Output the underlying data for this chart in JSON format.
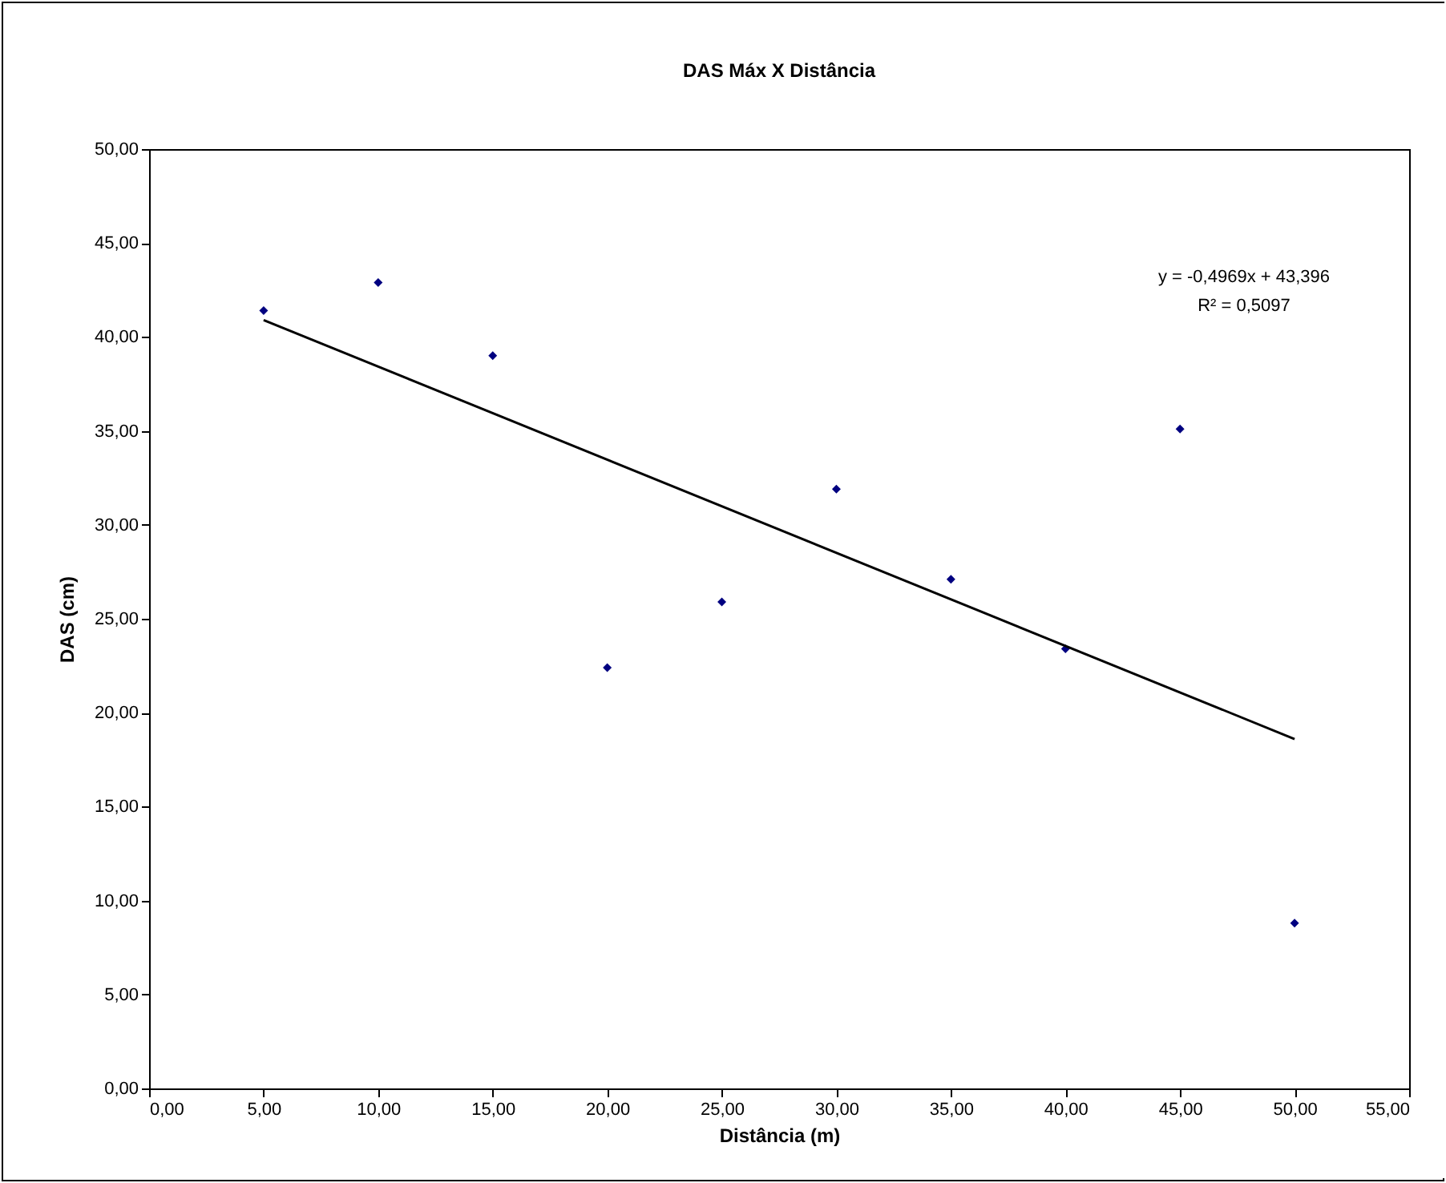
{
  "chart_data": {
    "type": "scatter",
    "title": "DAS Máx X Distância",
    "xlabel": "Distância (m)",
    "ylabel": "DAS (cm)",
    "xlim": [
      0,
      55
    ],
    "ylim": [
      0,
      50
    ],
    "xticks": [
      {
        "value": 0,
        "label": "0,00"
      },
      {
        "value": 5,
        "label": "5,00"
      },
      {
        "value": 10,
        "label": "10,00"
      },
      {
        "value": 15,
        "label": "15,00"
      },
      {
        "value": 20,
        "label": "20,00"
      },
      {
        "value": 25,
        "label": "25,00"
      },
      {
        "value": 30,
        "label": "30,00"
      },
      {
        "value": 35,
        "label": "35,00"
      },
      {
        "value": 40,
        "label": "40,00"
      },
      {
        "value": 45,
        "label": "45,00"
      },
      {
        "value": 50,
        "label": "50,00"
      },
      {
        "value": 55,
        "label": "55,00"
      }
    ],
    "yticks": [
      {
        "value": 0,
        "label": "0,00"
      },
      {
        "value": 5,
        "label": "5,00"
      },
      {
        "value": 10,
        "label": "10,00"
      },
      {
        "value": 15,
        "label": "15,00"
      },
      {
        "value": 20,
        "label": "20,00"
      },
      {
        "value": 25,
        "label": "25,00"
      },
      {
        "value": 30,
        "label": "30,00"
      },
      {
        "value": 35,
        "label": "35,00"
      },
      {
        "value": 40,
        "label": "40,00"
      },
      {
        "value": 45,
        "label": "45,00"
      },
      {
        "value": 50,
        "label": "50,00"
      }
    ],
    "grid": false,
    "series": [
      {
        "type": "scatter",
        "color": "#000080",
        "marker": "diamond",
        "x": [
          5,
          10,
          15,
          20,
          25,
          30,
          35,
          40,
          45,
          50
        ],
        "values": [
          41.4,
          42.9,
          39.0,
          22.4,
          25.9,
          31.9,
          27.1,
          23.4,
          35.1,
          8.8
        ]
      },
      {
        "type": "line",
        "color": "#000000",
        "marker": "none",
        "x": [
          5,
          50
        ],
        "values": [
          40.9,
          18.6
        ]
      }
    ],
    "annotations": [
      "y = -0,4969x + 43,396",
      "R² = 0,5097"
    ]
  }
}
